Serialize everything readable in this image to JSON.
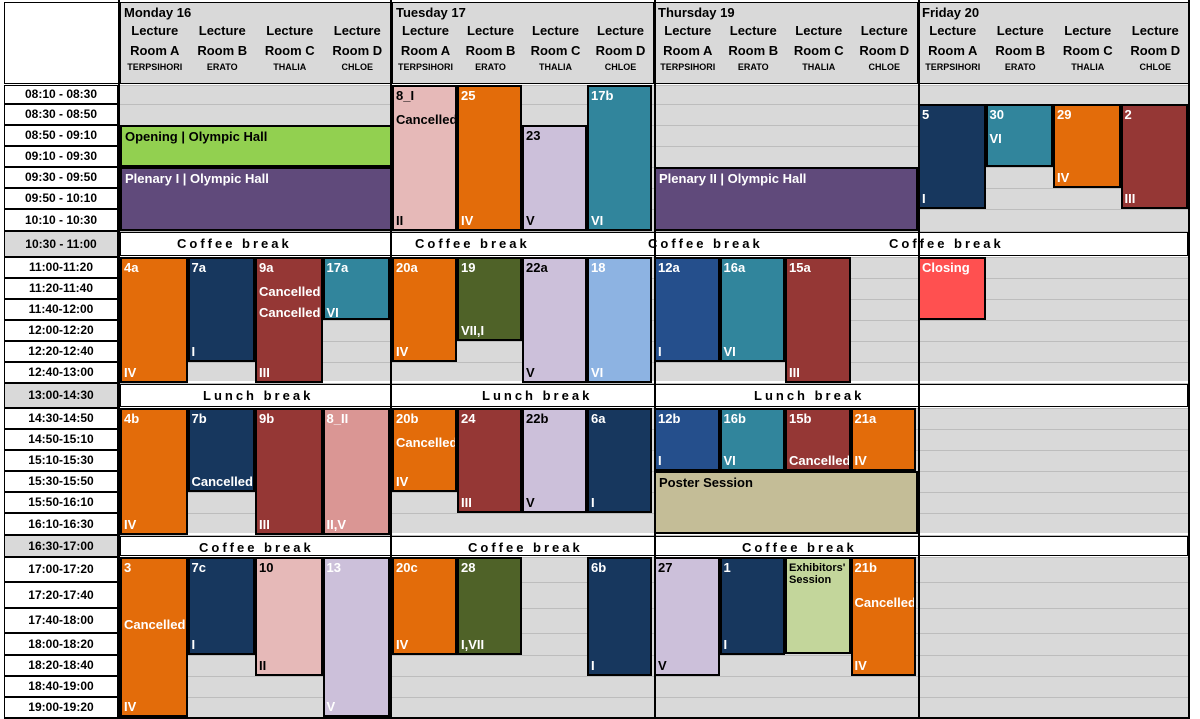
{
  "days": [
    {
      "label": "Monday 16"
    },
    {
      "label": "Tuesday 17"
    },
    {
      "label": "Thursday 19"
    },
    {
      "label": "Friday 20"
    }
  ],
  "rooms": [
    {
      "line1": "Lecture",
      "line2": "Room A",
      "sub": "TERPSIHORI"
    },
    {
      "line1": "Lecture",
      "line2": "Room B",
      "sub": "ERATO"
    },
    {
      "line1": "Lecture",
      "line2": "Room C",
      "sub": "THALIA"
    },
    {
      "line1": "Lecture",
      "line2": "Room D",
      "sub": "CHLOE"
    }
  ],
  "times": [
    "08:10 - 08:30",
    "08:30 - 08:50",
    "08:50 - 09:10",
    "09:10 - 09:30",
    "09:30 - 09:50",
    "09:50 - 10:10",
    "10:10 - 10:30",
    "10:30 - 11:00",
    "11:00-11:20",
    "11:20-11:40",
    "11:40-12:00",
    "12:00-12:20",
    "12:20-12:40",
    "12:40-13:00",
    "13:00-14:30",
    "14:30-14:50",
    "14:50-15:10",
    "15:10-15:30",
    "15:30-15:50",
    "15:50-16:10",
    "16:10-16:30",
    "16:30-17:00",
    "17:00-17:20",
    "17:20-17:40",
    "17:40-18:00",
    "18:00-18:20",
    "18:20-18:40",
    "18:40-19:00",
    "19:00-19:20"
  ],
  "breaks": {
    "coffee": "Coffee break",
    "lunch": "Lunch break"
  },
  "plenary": {
    "opening": "Opening  |  Olympic Hall",
    "plenary1": "Plenary I  |  Olympic Hall",
    "plenary2": "Plenary II  |  Olympic Hall",
    "poster": "Poster Session",
    "exhibitors": "Exhibitors' Session",
    "closing": "Closing"
  },
  "colors": {
    "orange": "#e36c0a",
    "navy": "#17375e",
    "maroon": "#953735",
    "teal": "#31859c",
    "pink": "#e6b9b8",
    "lavender": "#ccc0da",
    "olive": "#4f6228",
    "lightblue": "#8db3e2",
    "blue": "#254f8c",
    "green": "#92d050",
    "purple": "#604a7b",
    "khaki": "#c4bd97",
    "lightgreen": "#c3d69b",
    "red": "#ff5050",
    "rose": "#da9694",
    "bg": "#d9d9d9"
  },
  "sessions": [
    {
      "top": "8_I",
      "mid": "Cancelled",
      "bot": "II"
    },
    {
      "top": "25",
      "mid": "",
      "bot": "IV"
    },
    {
      "top": "23",
      "mid": "",
      "bot": "V"
    },
    {
      "top": "17b",
      "mid": "",
      "bot": "VI"
    },
    {
      "top": "5",
      "mid": "",
      "bot": "I"
    },
    {
      "top": "30",
      "mid": "VI",
      "bot": ""
    },
    {
      "top": "29",
      "mid": "",
      "bot": "IV"
    },
    {
      "top": "2",
      "mid": "",
      "bot": "III"
    },
    {
      "top": "4a",
      "mid": "",
      "bot": "IV"
    },
    {
      "top": "7a",
      "mid": "",
      "bot": "I"
    },
    {
      "top": "9a",
      "mid": "Cancelled\nCancelled",
      "bot": "III"
    },
    {
      "top": "17a",
      "mid": "VI",
      "bot": ""
    },
    {
      "top": "20a",
      "mid": "",
      "bot": "IV"
    },
    {
      "top": "19",
      "mid": "",
      "bot": "VII,I"
    },
    {
      "top": "22a",
      "mid": "",
      "bot": "V"
    },
    {
      "top": "18",
      "mid": "",
      "bot": "VI"
    },
    {
      "top": "12a",
      "mid": "",
      "bot": "I"
    },
    {
      "top": "16a",
      "mid": "",
      "bot": "VI"
    },
    {
      "top": "15a",
      "mid": "",
      "bot": "III"
    },
    {
      "top": "4b",
      "mid": "",
      "bot": "IV"
    },
    {
      "top": "7b",
      "mid": "",
      "bot": "Cancelled"
    },
    {
      "top": "9b",
      "mid": "",
      "bot": "III"
    },
    {
      "top": "8_II",
      "mid": "",
      "bot": "II,V"
    },
    {
      "top": "20b",
      "mid": "Cancelled",
      "bot": "IV"
    },
    {
      "top": "24",
      "mid": "",
      "bot": "III"
    },
    {
      "top": "22b",
      "mid": "",
      "bot": "V"
    },
    {
      "top": "6a",
      "mid": "",
      "bot": "I"
    },
    {
      "top": "12b",
      "mid": "",
      "bot": "I"
    },
    {
      "top": "16b",
      "mid": "",
      "bot": "VI"
    },
    {
      "top": "15b",
      "mid": "",
      "bot": "Cancelled"
    },
    {
      "top": "21a",
      "mid": "",
      "bot": "IV"
    },
    {
      "top": "3",
      "mid": "Cancelled",
      "bot": "IV"
    },
    {
      "top": "7c",
      "mid": "",
      "bot": "I"
    },
    {
      "top": "10",
      "mid": "",
      "bot": "II"
    },
    {
      "top": "13",
      "mid": "",
      "bot": "V"
    },
    {
      "top": "20c",
      "mid": "",
      "bot": "IV"
    },
    {
      "top": "28",
      "mid": "",
      "bot": "I,VII"
    },
    {
      "top": "6b",
      "mid": "",
      "bot": "I"
    },
    {
      "top": "27",
      "mid": "",
      "bot": "V"
    },
    {
      "top": "1",
      "mid": "",
      "bot": "I"
    },
    {
      "top": "21b",
      "mid": "Cancelled",
      "bot": "IV"
    }
  ]
}
